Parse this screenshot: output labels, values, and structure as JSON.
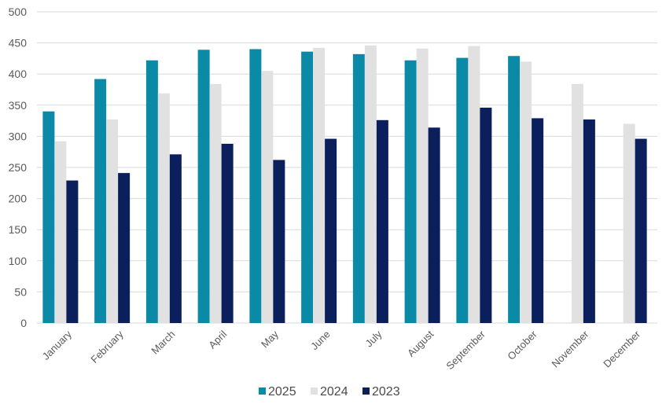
{
  "chart_data": {
    "type": "bar",
    "title": "",
    "xlabel": "",
    "ylabel": "",
    "ylim": [
      0,
      500
    ],
    "yticks": [
      0,
      50,
      100,
      150,
      200,
      250,
      300,
      350,
      400,
      450,
      500
    ],
    "grid": true,
    "legend_position": "bottom-center",
    "categories": [
      "January",
      "February",
      "March",
      "April",
      "May",
      "June",
      "July",
      "August",
      "September",
      "October",
      "November",
      "December"
    ],
    "series": [
      {
        "name": "2025",
        "color": "#0A8AA6",
        "values": [
          340,
          392,
          422,
          439,
          440,
          436,
          432,
          422,
          426,
          429,
          null,
          null
        ]
      },
      {
        "name": "2024",
        "color": "#E1E1E1",
        "values": [
          292,
          327,
          369,
          384,
          405,
          442,
          446,
          441,
          445,
          420,
          384,
          320
        ]
      },
      {
        "name": "2023",
        "color": "#0B1F5C",
        "values": [
          229,
          241,
          271,
          288,
          262,
          296,
          326,
          314,
          346,
          329,
          327,
          296
        ]
      }
    ]
  }
}
